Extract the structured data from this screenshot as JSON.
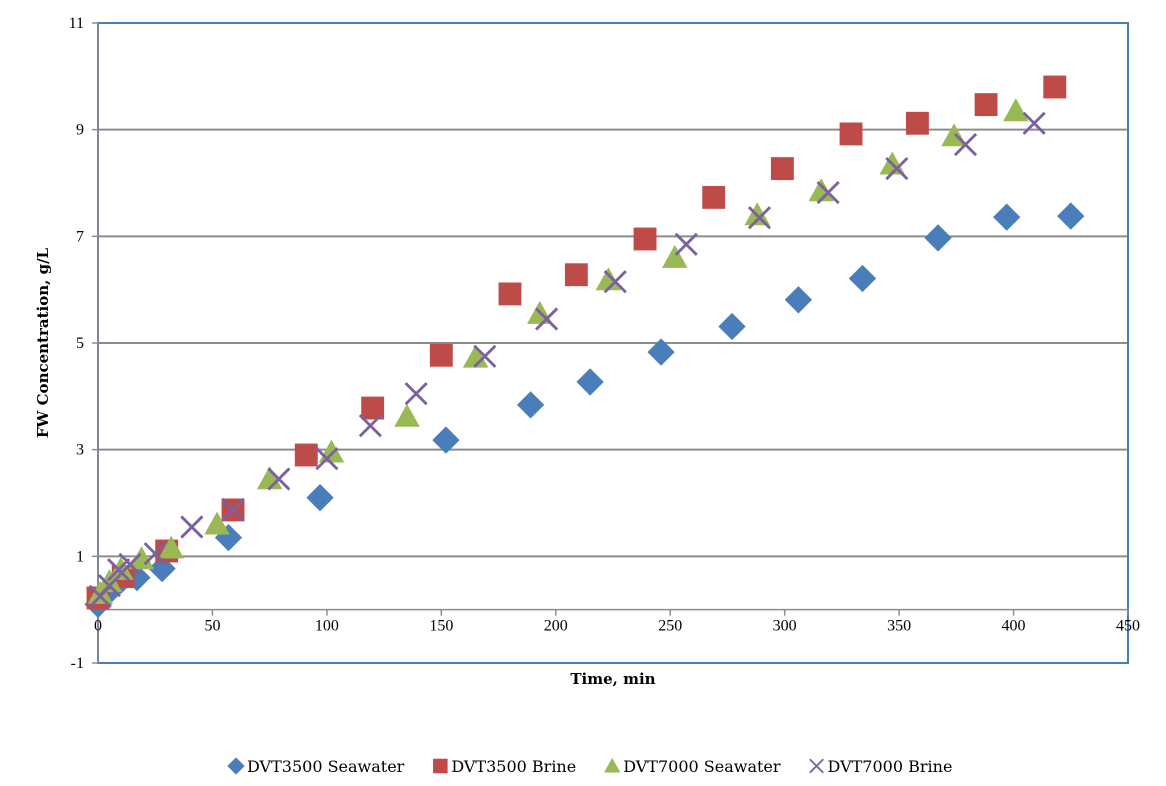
{
  "chart_data": {
    "type": "scatter",
    "title": "",
    "xlabel": "Time, min",
    "ylabel": "FW Concentration, g/L",
    "xlim": [
      0,
      450
    ],
    "ylim": [
      -1,
      11
    ],
    "x_ticks": [
      0,
      50,
      100,
      150,
      200,
      250,
      300,
      350,
      400,
      450
    ],
    "y_ticks": [
      -1,
      1,
      3,
      5,
      7,
      9,
      11
    ],
    "grid": "horizontal",
    "legend_position": "bottom",
    "series": [
      {
        "name": "DVT3500 Seawater",
        "marker": "diamond",
        "color": "#4a7ebb",
        "points": [
          [
            0,
            0.1
          ],
          [
            5,
            0.35
          ],
          [
            10,
            0.55
          ],
          [
            17,
            0.6
          ],
          [
            28,
            0.77
          ],
          [
            57,
            1.35
          ],
          [
            97,
            2.1
          ],
          [
            152,
            3.18
          ],
          [
            189,
            3.84
          ],
          [
            215,
            4.27
          ],
          [
            246,
            4.83
          ],
          [
            277,
            5.31
          ],
          [
            306,
            5.81
          ],
          [
            334,
            6.21
          ],
          [
            367,
            6.97
          ],
          [
            397,
            7.36
          ],
          [
            425,
            7.38
          ]
        ]
      },
      {
        "name": "DVT3500 Brine",
        "marker": "square",
        "color": "#be4b48",
        "points": [
          [
            0,
            0.22
          ],
          [
            11,
            0.62
          ],
          [
            30,
            1.1
          ],
          [
            59,
            1.87
          ],
          [
            91,
            2.9
          ],
          [
            120,
            3.78
          ],
          [
            150,
            4.77
          ],
          [
            180,
            5.92
          ],
          [
            209,
            6.28
          ],
          [
            239,
            6.95
          ],
          [
            269,
            7.73
          ],
          [
            299,
            8.27
          ],
          [
            329,
            8.92
          ],
          [
            358,
            9.12
          ],
          [
            388,
            9.47
          ],
          [
            418,
            9.8
          ]
        ]
      },
      {
        "name": "DVT7000 Seawater",
        "marker": "triangle",
        "color": "#98b954",
        "points": [
          [
            1,
            0.3
          ],
          [
            5,
            0.52
          ],
          [
            10,
            0.75
          ],
          [
            19,
            0.95
          ],
          [
            32,
            1.15
          ],
          [
            52,
            1.6
          ],
          [
            75,
            2.45
          ],
          [
            102,
            2.95
          ],
          [
            135,
            3.62
          ],
          [
            165,
            4.73
          ],
          [
            193,
            5.55
          ],
          [
            223,
            6.18
          ],
          [
            252,
            6.6
          ],
          [
            288,
            7.4
          ],
          [
            316,
            7.85
          ],
          [
            347,
            8.35
          ],
          [
            374,
            8.88
          ],
          [
            401,
            9.35
          ]
        ]
      },
      {
        "name": "DVT7000 Brine",
        "marker": "x",
        "color": "#7d60a0",
        "points": [
          [
            1,
            0.25
          ],
          [
            5,
            0.45
          ],
          [
            9,
            0.75
          ],
          [
            14,
            0.85
          ],
          [
            25,
            1.05
          ],
          [
            41,
            1.55
          ],
          [
            59,
            1.88
          ],
          [
            79,
            2.45
          ],
          [
            100,
            2.83
          ],
          [
            119,
            3.45
          ],
          [
            139,
            4.05
          ],
          [
            169,
            4.75
          ],
          [
            196,
            5.45
          ],
          [
            226,
            6.15
          ],
          [
            257,
            6.85
          ],
          [
            289,
            7.35
          ],
          [
            319,
            7.82
          ],
          [
            349,
            8.27
          ],
          [
            379,
            8.72
          ],
          [
            409,
            9.12
          ]
        ]
      }
    ]
  }
}
